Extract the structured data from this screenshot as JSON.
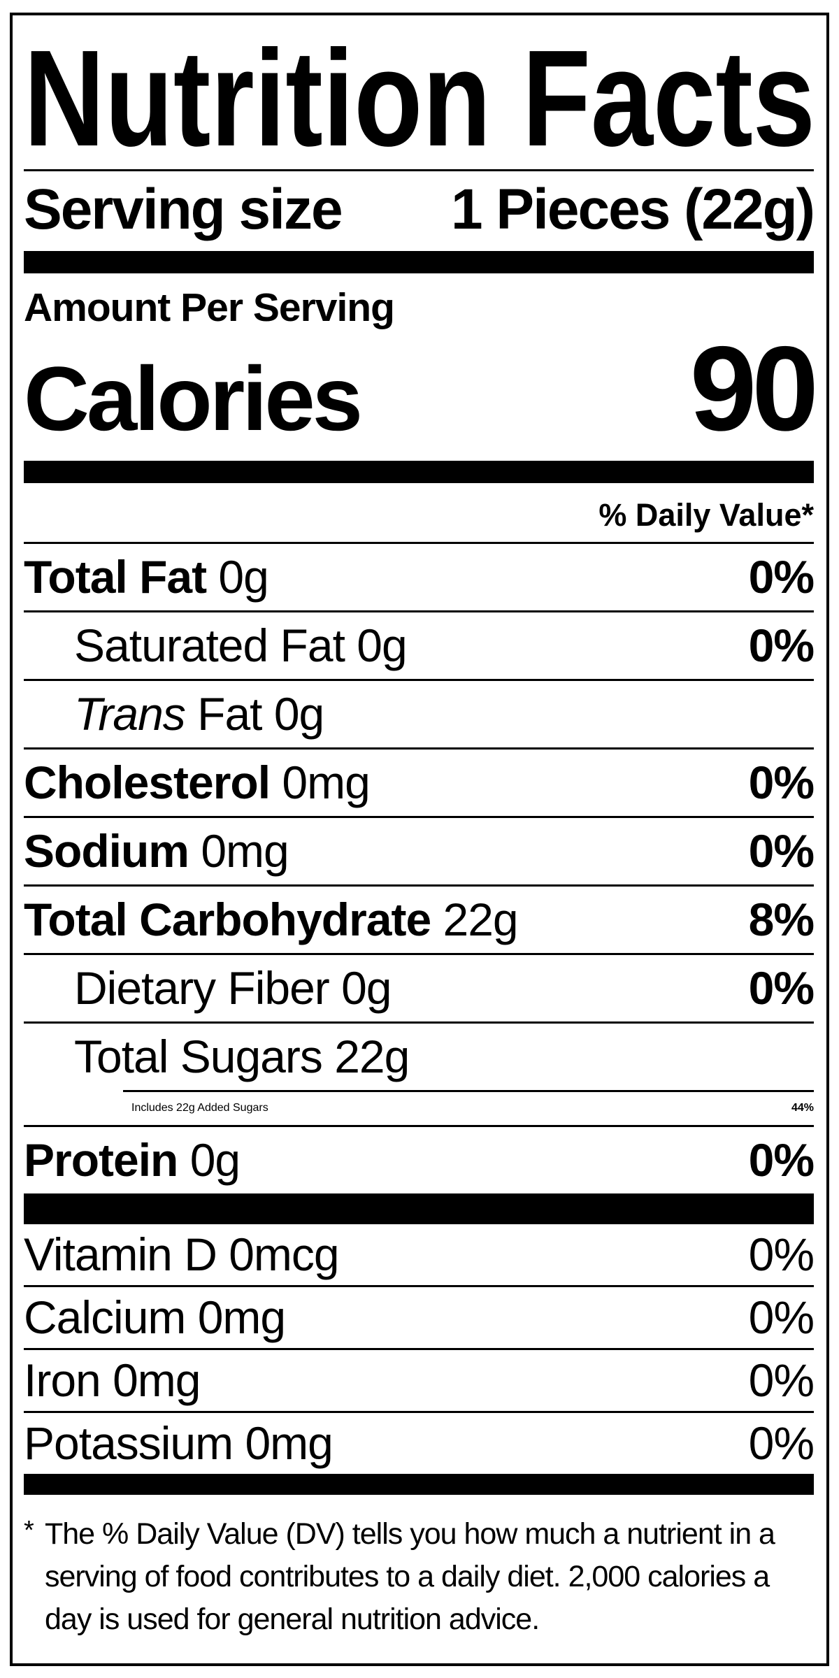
{
  "colors": {
    "ink": "#000000",
    "paper": "#ffffff"
  },
  "label": {
    "title": "Nutrition Facts",
    "serving": {
      "label": "Serving size",
      "value": "1 Pieces (22g)"
    },
    "amount_per_serving": "Amount Per Serving",
    "calories": {
      "label": "Calories",
      "value": "90"
    },
    "daily_value_header": "% Daily Value*",
    "nutrients": [
      {
        "bold": "Total Fat",
        "italic": "",
        "regular": " 0g",
        "dv": "0%"
      },
      {
        "bold": "",
        "italic": "",
        "regular": "Saturated Fat 0g",
        "dv": "0%"
      },
      {
        "bold": "",
        "italic": "Trans",
        "regular": " Fat 0g",
        "dv": ""
      },
      {
        "bold": "Cholesterol",
        "italic": "",
        "regular": " 0mg",
        "dv": "0%"
      },
      {
        "bold": "Sodium",
        "italic": "",
        "regular": " 0mg",
        "dv": "0%"
      },
      {
        "bold": "Total Carbohydrate",
        "italic": "",
        "regular": " 22g",
        "dv": "8%"
      },
      {
        "bold": "",
        "italic": "",
        "regular": "Dietary Fiber 0g",
        "dv": "0%"
      },
      {
        "bold": "",
        "italic": "",
        "regular": "Total Sugars 22g",
        "dv": ""
      },
      {
        "bold": "",
        "italic": "",
        "regular": "Includes 22g Added Sugars",
        "dv": "44%"
      },
      {
        "bold": "Protein",
        "italic": "",
        "regular": " 0g",
        "dv": "0%"
      }
    ],
    "vitamins": [
      {
        "name": "Vitamin D 0mcg",
        "dv": "0%"
      },
      {
        "name": "Calcium 0mg",
        "dv": "0%"
      },
      {
        "name": "Iron 0mg",
        "dv": "0%"
      },
      {
        "name": "Potassium 0mg",
        "dv": "0%"
      }
    ],
    "footnote": {
      "marker": "*",
      "lines": [
        "The % Daily Value (DV) tells you how much a nutrient in a",
        "serving of food contributes to a daily diet. 2,000 calories a",
        "day is used for general nutrition advice."
      ]
    }
  }
}
